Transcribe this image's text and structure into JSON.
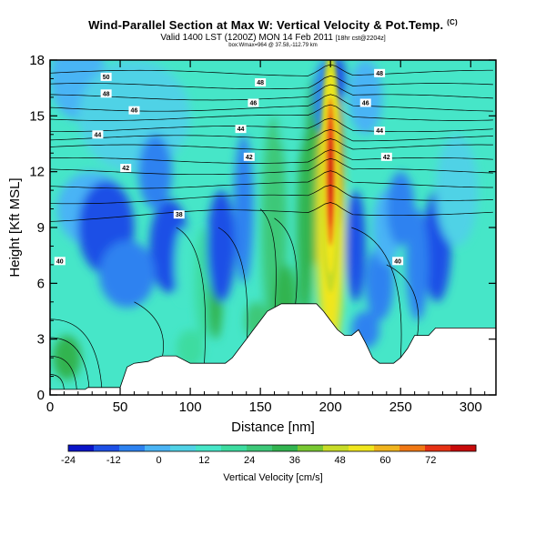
{
  "header": {
    "title": "Wind-Parallel Section at Max W: Vertical Velocity & Pot.Temp.",
    "title_flag": "(C)",
    "valid_line": "Valid 1400 LST (1200Z) MON 14 Feb 2011",
    "valid_suffix": "[18hr cst@2204z]",
    "subline": "box:Wmax=964 @ 37.58,-112.79 km"
  },
  "colors": {
    "terrain": "#ffffff",
    "contour": "#000000",
    "colorbar": [
      "#0a14c8",
      "#1e50e6",
      "#2d82f0",
      "#4ab4f5",
      "#50d2e6",
      "#46e6c8",
      "#3cdca0",
      "#3cc878",
      "#32b450",
      "#78c832",
      "#c8dc28",
      "#f0e61e",
      "#f0b41e",
      "#f07814",
      "#e63214",
      "#c80a0a"
    ]
  },
  "chart_data": {
    "type": "heatmap",
    "title": "Wind-Parallel Section at Max W: Vertical Velocity & Pot.Temp.",
    "xlabel": "Distance [nm]",
    "ylabel": "Height [Kft MSL]",
    "xlim": [
      0,
      318
    ],
    "ylim": [
      0,
      18
    ],
    "x_ticks": [
      0,
      50,
      100,
      150,
      200,
      250,
      300
    ],
    "y_ticks": [
      0,
      3,
      6,
      9,
      12,
      15,
      18
    ],
    "colorbar": {
      "label": "Vertical Velocity [cm/s]",
      "min": -24,
      "max": 84,
      "ticks": [
        -24,
        -12,
        0,
        12,
        24,
        36,
        48,
        60,
        72
      ]
    },
    "terrain_profile": [
      [
        0,
        0.3
      ],
      [
        25,
        0.3
      ],
      [
        27,
        0.4
      ],
      [
        50,
        0.4
      ],
      [
        55,
        1.5
      ],
      [
        60,
        1.7
      ],
      [
        70,
        1.8
      ],
      [
        75,
        2.0
      ],
      [
        80,
        2.1
      ],
      [
        90,
        2.1
      ],
      [
        100,
        1.7
      ],
      [
        110,
        1.7
      ],
      [
        125,
        1.7
      ],
      [
        130,
        2.0
      ],
      [
        135,
        2.5
      ],
      [
        140,
        3.0
      ],
      [
        145,
        3.5
      ],
      [
        150,
        4.0
      ],
      [
        155,
        4.5
      ],
      [
        165,
        4.9
      ],
      [
        190,
        4.9
      ],
      [
        195,
        4.5
      ],
      [
        200,
        4.0
      ],
      [
        205,
        3.5
      ],
      [
        210,
        3.2
      ],
      [
        215,
        3.2
      ],
      [
        220,
        3.5
      ],
      [
        225,
        2.8
      ],
      [
        230,
        2.0
      ],
      [
        235,
        1.7
      ],
      [
        245,
        1.7
      ],
      [
        250,
        2.0
      ],
      [
        255,
        2.5
      ],
      [
        260,
        3.2
      ],
      [
        270,
        3.2
      ],
      [
        275,
        3.6
      ],
      [
        300,
        3.6
      ],
      [
        318,
        3.6
      ]
    ],
    "updraft_core": {
      "x": 200,
      "y": 12,
      "peak": 84
    },
    "theta_labels": [
      {
        "text": "50",
        "x": 40,
        "y": 17.1
      },
      {
        "text": "48",
        "x": 40,
        "y": 16.2
      },
      {
        "text": "48",
        "x": 150,
        "y": 16.8
      },
      {
        "text": "48",
        "x": 235,
        "y": 17.3
      },
      {
        "text": "46",
        "x": 60,
        "y": 15.3
      },
      {
        "text": "46",
        "x": 145,
        "y": 15.7
      },
      {
        "text": "46",
        "x": 225,
        "y": 15.7
      },
      {
        "text": "44",
        "x": 34,
        "y": 14.0
      },
      {
        "text": "44",
        "x": 136,
        "y": 14.3
      },
      {
        "text": "44",
        "x": 235,
        "y": 14.2
      },
      {
        "text": "42",
        "x": 54,
        "y": 12.2
      },
      {
        "text": "42",
        "x": 142,
        "y": 12.8
      },
      {
        "text": "42",
        "x": 240,
        "y": 12.8
      },
      {
        "text": "38",
        "x": 92,
        "y": 9.7
      },
      {
        "text": "40",
        "x": 7,
        "y": 7.2
      },
      {
        "text": "40",
        "x": 248,
        "y": 7.2
      }
    ]
  }
}
